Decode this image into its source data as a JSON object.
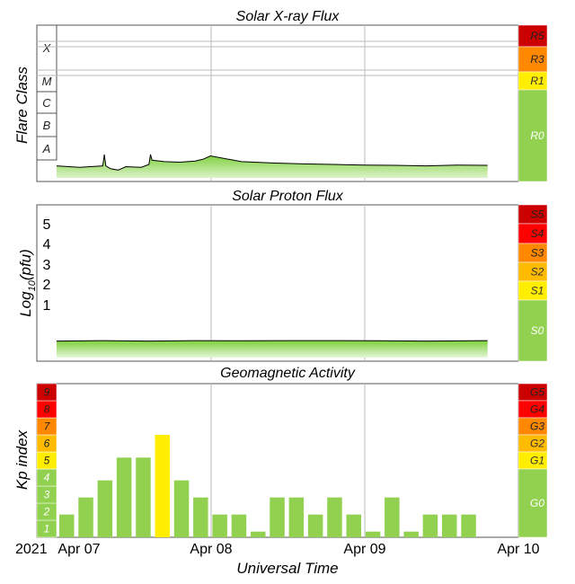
{
  "chart_data": [
    {
      "type": "line",
      "title": "Solar X-ray Flux",
      "ylabel": "Flare Class",
      "flare_classes": [
        "X",
        "M",
        "C",
        "B",
        "A"
      ],
      "scale_labels": [
        {
          "label": "R5",
          "color": "#cc0000"
        },
        {
          "label": "R3",
          "color": "#ff8800"
        },
        {
          "label": "R1",
          "color": "#ffee00"
        },
        {
          "label": "R0",
          "color": "#92d050"
        }
      ],
      "x": [
        0,
        0.15,
        0.3,
        0.31,
        0.32,
        0.35,
        0.4,
        0.45,
        0.55,
        0.6,
        0.61,
        0.62,
        0.7,
        0.8,
        0.9,
        0.95,
        1.0,
        1.2,
        1.4,
        1.6,
        1.8,
        2.0,
        2.2,
        2.4,
        2.6,
        2.8
      ],
      "values": [
        -7.95,
        -8.0,
        -7.95,
        -7.55,
        -7.95,
        -8.05,
        -8.1,
        -7.98,
        -8.0,
        -7.9,
        -7.55,
        -7.75,
        -7.8,
        -7.82,
        -7.78,
        -7.72,
        -7.6,
        -7.8,
        -7.85,
        -7.88,
        -7.9,
        -7.92,
        -7.93,
        -7.95,
        -7.92,
        -7.93
      ],
      "ylim": [
        -8.5,
        -3
      ]
    },
    {
      "type": "line",
      "title": "Solar Proton Flux",
      "ylabel": "Log10(pfu)",
      "ylabel_main": "Log",
      "ylabel_sub": "10",
      "ylabel_rest": "(pfu)",
      "yticks": [
        "1",
        "2",
        "3",
        "4",
        "5"
      ],
      "scale_labels": [
        {
          "label": "S5",
          "color": "#cc0000"
        },
        {
          "label": "S4",
          "color": "#ff0000"
        },
        {
          "label": "S3",
          "color": "#ff8800"
        },
        {
          "label": "S2",
          "color": "#ffbb00"
        },
        {
          "label": "S1",
          "color": "#ffee00"
        },
        {
          "label": "S0",
          "color": "#92d050"
        }
      ],
      "x": [
        0,
        0.3,
        0.6,
        0.9,
        1.2,
        1.5,
        1.8,
        2.1,
        2.4,
        2.8
      ],
      "values": [
        -0.62,
        -0.6,
        -0.62,
        -0.6,
        -0.61,
        -0.6,
        -0.6,
        -0.61,
        -0.62,
        -0.6
      ],
      "ylim": [
        -1.6,
        6
      ]
    },
    {
      "type": "bar",
      "title": "Geomagnetic Activity",
      "ylabel": "Kp index",
      "ylim": [
        0,
        9
      ],
      "kp_scale": [
        "1",
        "2",
        "3",
        "4",
        "5",
        "6",
        "7",
        "8",
        "9"
      ],
      "kp_colors": [
        "#92d050",
        "#92d050",
        "#92d050",
        "#92d050",
        "#ffee00",
        "#ffbb00",
        "#ff8800",
        "#ff0000",
        "#cc0000"
      ],
      "scale_labels": [
        {
          "label": "G5",
          "color": "#cc0000"
        },
        {
          "label": "G4",
          "color": "#ff0000"
        },
        {
          "label": "G3",
          "color": "#ff8800"
        },
        {
          "label": "G2",
          "color": "#ffbb00"
        },
        {
          "label": "G1",
          "color": "#ffee00"
        },
        {
          "label": "G0",
          "color": "#92d050"
        }
      ],
      "values": [
        1.33,
        2.33,
        3.33,
        4.67,
        4.67,
        6,
        3.33,
        2.33,
        1.33,
        1.33,
        0.33,
        2.33,
        2.33,
        1.33,
        2.33,
        1.33,
        0.33,
        2.33,
        0.33,
        1.33,
        1.33,
        1.33
      ],
      "colors": [
        "#92d050",
        "#92d050",
        "#92d050",
        "#92d050",
        "#92d050",
        "#ffee00",
        "#92d050",
        "#92d050",
        "#92d050",
        "#92d050",
        "#92d050",
        "#92d050",
        "#92d050",
        "#92d050",
        "#92d050",
        "#92d050",
        "#92d050",
        "#92d050",
        "#92d050",
        "#92d050",
        "#92d050",
        "#92d050"
      ]
    }
  ],
  "x_axis": {
    "year": "2021",
    "ticks": [
      "Apr 07",
      "Apr 08",
      "Apr 09",
      "Apr 10"
    ],
    "label": "Universal Time"
  }
}
